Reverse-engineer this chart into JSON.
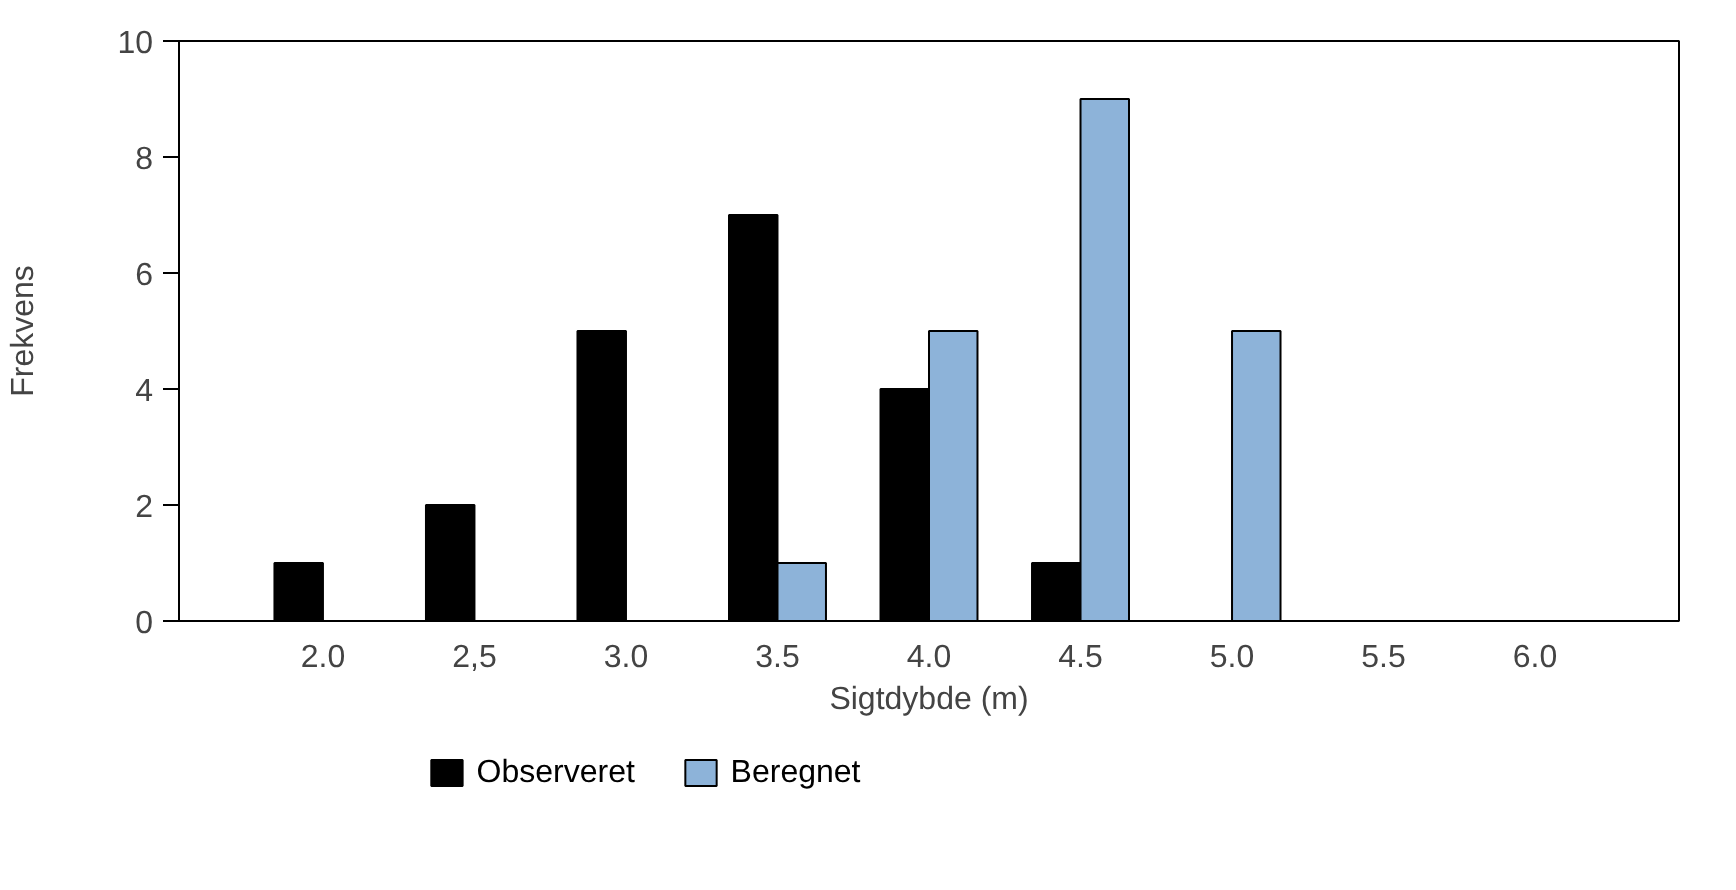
{
  "chart_data": {
    "type": "bar",
    "xlabel": "Sigtdybde (m)",
    "ylabel": "Frekvens",
    "categories": [
      "2.0",
      "2,5",
      "3.0",
      "3.5",
      "4.0",
      "4.5",
      "5.0",
      "5.5",
      "6.0"
    ],
    "series": [
      {
        "name": "Observeret",
        "color": "#000000",
        "values": [
          1,
          2,
          5,
          7,
          4,
          1,
          null,
          null,
          null
        ]
      },
      {
        "name": "Beregnet",
        "color": "#8db3d9",
        "values": [
          null,
          null,
          null,
          1,
          5,
          9,
          5,
          null,
          null
        ]
      }
    ],
    "ylim": [
      0,
      10
    ],
    "yticks": [
      0,
      2,
      4,
      6,
      8,
      10
    ],
    "grid": false,
    "legend": "bottom left"
  }
}
